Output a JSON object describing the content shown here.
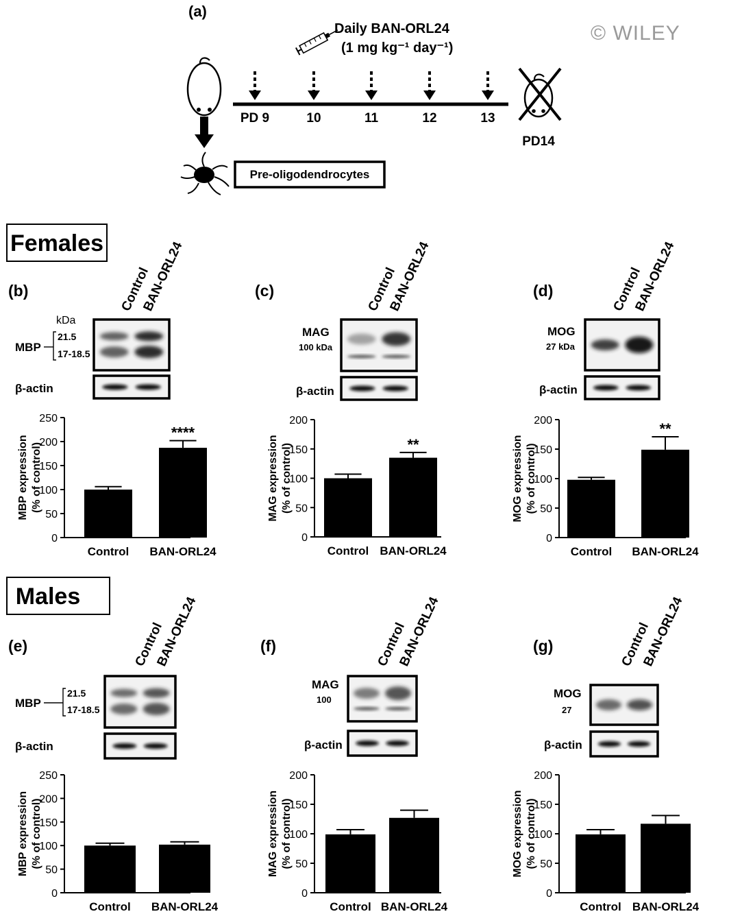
{
  "watermark": "© WILEY",
  "timeline": {
    "panel_label": "(a)",
    "treatment_line1": "Daily BAN-ORL24",
    "treatment_line2": "(1 mg kg⁻¹ day⁻¹)",
    "days": [
      "PD 9",
      "10",
      "11",
      "12",
      "13"
    ],
    "endpoint": "PD14",
    "cell_box": "Pre-oligodendrocytes"
  },
  "sections": {
    "females": "Females",
    "males": "Males"
  },
  "blot_lanes": [
    "Control",
    "BAN-ORL24"
  ],
  "blots": [
    {
      "id": "b",
      "label": "(b)",
      "protein": "MBP",
      "kda_header": "kDa",
      "mw_top": "21.5",
      "mw_bottom": "17-18.5",
      "loading": "β-actin"
    },
    {
      "id": "c",
      "label": "(c)",
      "protein": "MAG",
      "mw": "100 kDa",
      "loading": "β-actin"
    },
    {
      "id": "d",
      "label": "(d)",
      "protein": "MOG",
      "mw": "27 kDa",
      "loading": "β-actin"
    },
    {
      "id": "e",
      "label": "(e)",
      "protein": "MBP",
      "mw_top": "21.5",
      "mw_bottom": "17-18.5",
      "loading": "β-actin"
    },
    {
      "id": "f",
      "label": "(f)",
      "protein": "MAG",
      "mw": "100",
      "loading": "β-actin"
    },
    {
      "id": "g",
      "label": "(g)",
      "protein": "MOG",
      "mw": "27",
      "loading": "β-actin"
    }
  ],
  "chart_data": [
    {
      "panel": "b",
      "type": "bar",
      "categories": [
        "Control",
        "BAN-ORL24"
      ],
      "values": [
        100,
        187
      ],
      "errors": [
        6,
        15
      ],
      "significance": [
        "",
        "****"
      ],
      "ylabel_line1": "MBP expression",
      "ylabel_line2": "(% of control)",
      "ylim": [
        0,
        250
      ],
      "yticks": [
        0,
        50,
        100,
        150,
        200,
        250
      ]
    },
    {
      "panel": "c",
      "type": "bar",
      "categories": [
        "Control",
        "BAN-ORL24"
      ],
      "values": [
        100,
        135
      ],
      "errors": [
        7,
        9
      ],
      "significance": [
        "",
        "**"
      ],
      "ylabel_line1": "MAG expression",
      "ylabel_line2": "(% of control)",
      "ylim": [
        0,
        200
      ],
      "yticks": [
        0,
        50,
        100,
        150,
        200
      ]
    },
    {
      "panel": "d",
      "type": "bar",
      "categories": [
        "Control",
        "BAN-ORL24"
      ],
      "values": [
        98,
        149
      ],
      "errors": [
        4,
        22
      ],
      "significance": [
        "",
        "**"
      ],
      "ylabel_line1": "MOG expression",
      "ylabel_line2": "(% of control)",
      "ylim": [
        0,
        200
      ],
      "yticks": [
        0,
        50,
        100,
        150,
        200
      ]
    },
    {
      "panel": "e",
      "type": "bar",
      "categories": [
        "Control",
        "BAN-ORL24"
      ],
      "values": [
        100,
        102
      ],
      "errors": [
        5,
        6
      ],
      "significance": [
        "",
        ""
      ],
      "ylabel_line1": "MBP expression",
      "ylabel_line2": "(% of control)",
      "ylim": [
        0,
        250
      ],
      "yticks": [
        0,
        50,
        100,
        150,
        200,
        250
      ]
    },
    {
      "panel": "f",
      "type": "bar",
      "categories": [
        "Control",
        "BAN-ORL24"
      ],
      "values": [
        99,
        127
      ],
      "errors": [
        8,
        13
      ],
      "significance": [
        "",
        ""
      ],
      "ylabel_line1": "MAG expression",
      "ylabel_line2": "(% of control)",
      "ylim": [
        0,
        200
      ],
      "yticks": [
        0,
        50,
        100,
        150,
        200
      ]
    },
    {
      "panel": "g",
      "type": "bar",
      "categories": [
        "Control",
        "BAN-ORL24"
      ],
      "values": [
        99,
        117
      ],
      "errors": [
        8,
        14
      ],
      "significance": [
        "",
        ""
      ],
      "ylabel_line1": "MOG expression",
      "ylabel_line2": "(% of control)",
      "ylim": [
        0,
        200
      ],
      "yticks": [
        0,
        50,
        100,
        150,
        200
      ]
    }
  ]
}
